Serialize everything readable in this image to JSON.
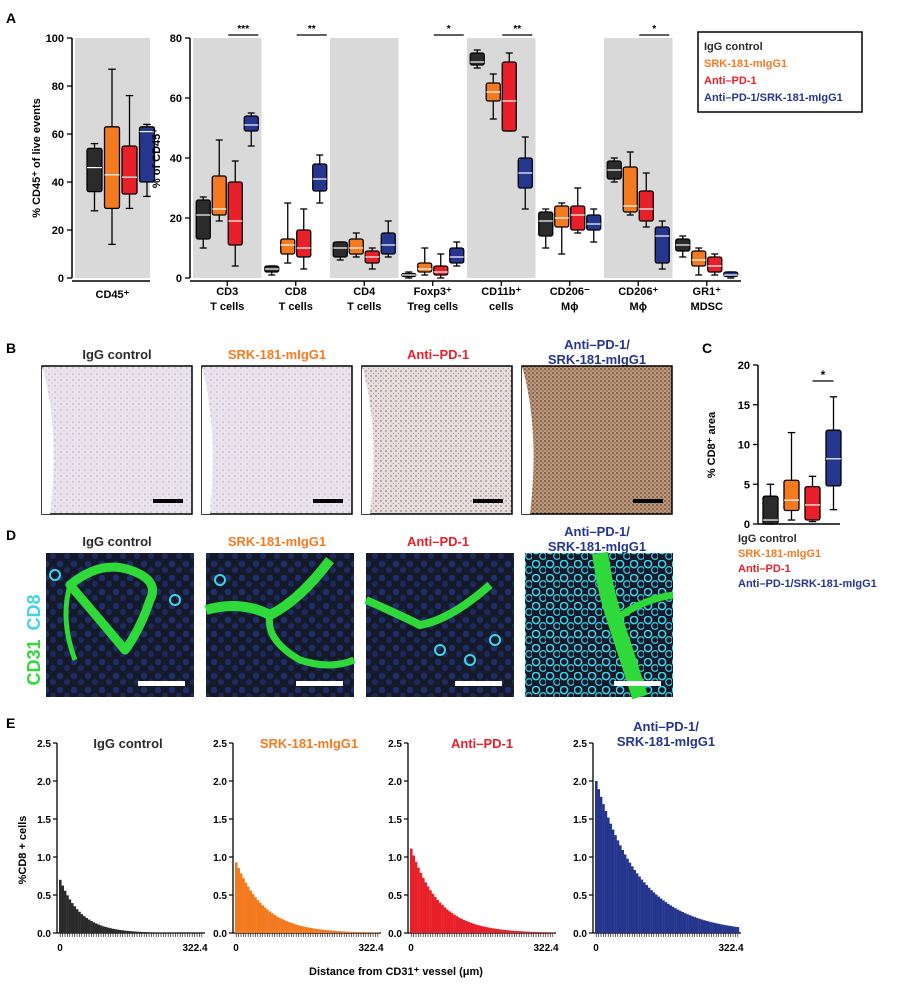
{
  "panel_letters": {
    "a": "A",
    "b": "B",
    "c": "C",
    "d": "D",
    "e": "E"
  },
  "colors": {
    "igg": "#2b2b2b",
    "srk": "#f47a20",
    "pd1": "#e8202a",
    "combo": "#26368f",
    "shade": "#d9d9d9",
    "green": "#2fd93a",
    "cyan": "#43d3e6"
  },
  "legend": {
    "igg": "IgG control",
    "srk": "SRK-181-mIgG1",
    "pd1": "Anti–PD-1",
    "combo": "Anti–PD-1/SRK-181-mIgG1"
  },
  "chart_data": [
    {
      "id": "A_cd45",
      "type": "box",
      "ylabel": "% CD45⁺ of live events",
      "ylim": [
        0,
        100
      ],
      "yticks": [
        "0",
        "20",
        "40",
        "60",
        "80",
        "100"
      ],
      "categories": [
        "CD45⁺"
      ],
      "groups": [
        [
          {
            "min": 28,
            "q1": 36,
            "med": 46,
            "q3": 54,
            "max": 56
          },
          {
            "min": 14,
            "q1": 29,
            "med": 43,
            "q3": 63,
            "max": 87
          },
          {
            "min": 29,
            "q1": 35,
            "med": 42,
            "q3": 55,
            "max": 76
          },
          {
            "min": 34,
            "q1": 40,
            "med": 61,
            "q3": 63,
            "max": 64
          }
        ]
      ]
    },
    {
      "id": "A_cd45pct",
      "type": "box",
      "ylabel": "% of CD45⁺",
      "ylim": [
        0,
        80
      ],
      "yticks": [
        "0",
        "20",
        "40",
        "60",
        "80"
      ],
      "categories": [
        "CD3 T cells",
        "CD8 T cells",
        "CD4 T cells",
        "Foxp3⁺ Treg cells",
        "CD11b⁺ cells",
        "CD206⁻ Mϕ",
        "CD206⁺ Mϕ",
        "GR1⁺ MDSC"
      ],
      "category_line1": [
        "CD3",
        "CD8",
        "CD4",
        "Foxp3⁺",
        "CD11b⁺",
        "CD206⁻",
        "CD206⁺",
        "GR1⁺"
      ],
      "category_line2": [
        "T cells",
        "T cells",
        "T cells",
        "Treg cells",
        "cells",
        "Mϕ",
        "Mϕ",
        "MDSC"
      ],
      "significance": [
        {
          "category": 0,
          "label": "***"
        },
        {
          "category": 1,
          "label": "**"
        },
        {
          "category": 3,
          "label": "*"
        },
        {
          "category": 4,
          "label": "**"
        },
        {
          "category": 6,
          "label": "*"
        }
      ],
      "groups": [
        [
          {
            "min": 10,
            "q1": 13,
            "med": 21,
            "q3": 26,
            "max": 27
          },
          {
            "min": 19,
            "q1": 21,
            "med": 23,
            "q3": 34,
            "max": 46
          },
          {
            "min": 4,
            "q1": 11,
            "med": 19,
            "q3": 32,
            "max": 39
          },
          {
            "min": 44,
            "q1": 49,
            "med": 51,
            "q3": 54,
            "max": 55
          }
        ],
        [
          {
            "min": 1,
            "q1": 2,
            "med": 3,
            "q3": 4,
            "max": 4
          },
          {
            "min": 5,
            "q1": 8,
            "med": 11,
            "q3": 13,
            "max": 25
          },
          {
            "min": 3,
            "q1": 7,
            "med": 10,
            "q3": 16,
            "max": 23
          },
          {
            "min": 25,
            "q1": 29,
            "med": 33,
            "q3": 38,
            "max": 41
          }
        ],
        [
          {
            "min": 6,
            "q1": 7,
            "med": 10,
            "q3": 12,
            "max": 12
          },
          {
            "min": 7,
            "q1": 8,
            "med": 10,
            "q3": 13,
            "max": 15
          },
          {
            "min": 3,
            "q1": 5,
            "med": 7,
            "q3": 9,
            "max": 10
          },
          {
            "min": 7,
            "q1": 8,
            "med": 11,
            "q3": 15,
            "max": 19
          }
        ],
        [
          {
            "min": 0,
            "q1": 0.5,
            "med": 1,
            "q3": 1.5,
            "max": 2
          },
          {
            "min": 1,
            "q1": 2,
            "med": 3,
            "q3": 5,
            "max": 10
          },
          {
            "min": 0,
            "q1": 1,
            "med": 2,
            "q3": 4,
            "max": 8
          },
          {
            "min": 4,
            "q1": 5,
            "med": 7,
            "q3": 10,
            "max": 12
          }
        ],
        [
          {
            "min": 70,
            "q1": 71,
            "med": 72,
            "q3": 75,
            "max": 76
          },
          {
            "min": 53,
            "q1": 59,
            "med": 62,
            "q3": 65,
            "max": 68
          },
          {
            "min": 49,
            "q1": 49,
            "med": 59,
            "q3": 72,
            "max": 75
          },
          {
            "min": 23,
            "q1": 30,
            "med": 35,
            "q3": 40,
            "max": 47
          }
        ],
        [
          {
            "min": 10,
            "q1": 14,
            "med": 19,
            "q3": 22,
            "max": 23
          },
          {
            "min": 8,
            "q1": 17,
            "med": 20,
            "q3": 24,
            "max": 25
          },
          {
            "min": 15,
            "q1": 16,
            "med": 21,
            "q3": 24,
            "max": 30
          },
          {
            "min": 12,
            "q1": 16,
            "med": 18,
            "q3": 21,
            "max": 23
          }
        ],
        [
          {
            "min": 32,
            "q1": 33,
            "med": 36,
            "q3": 39,
            "max": 40
          },
          {
            "min": 21,
            "q1": 22,
            "med": 24,
            "q3": 37,
            "max": 42
          },
          {
            "min": 17,
            "q1": 19,
            "med": 23,
            "q3": 29,
            "max": 35
          },
          {
            "min": 3,
            "q1": 5,
            "med": 14,
            "q3": 17,
            "max": 19
          }
        ],
        [
          {
            "min": 7,
            "q1": 9,
            "med": 11,
            "q3": 13,
            "max": 14
          },
          {
            "min": 1,
            "q1": 4,
            "med": 6,
            "q3": 9,
            "max": 10
          },
          {
            "min": 1,
            "q1": 2,
            "med": 4,
            "q3": 7,
            "max": 8
          },
          {
            "min": 0,
            "q1": 0.5,
            "med": 1,
            "q3": 2,
            "max": 2
          }
        ]
      ]
    },
    {
      "id": "C",
      "type": "box",
      "ylabel": "% CD8⁺ area",
      "ylim": [
        0,
        20
      ],
      "yticks": [
        "0",
        "5",
        "10",
        "15",
        "20"
      ],
      "significance": [
        {
          "from": 2,
          "to": 3,
          "label": "*"
        }
      ],
      "groups": [
        [
          {
            "min": 0,
            "q1": 0,
            "med": 0.5,
            "q3": 3.5,
            "max": 5
          },
          {
            "min": 0.5,
            "q1": 1.7,
            "med": 3,
            "q3": 5.5,
            "max": 11.5
          },
          {
            "min": 0.3,
            "q1": 0.5,
            "med": 2.4,
            "q3": 4.7,
            "max": 6
          },
          {
            "min": 1.8,
            "q1": 4.8,
            "med": 8.2,
            "q3": 11.8,
            "max": 16
          }
        ]
      ]
    },
    {
      "id": "E",
      "type": "bar",
      "ylabel": "%CD8 + cells",
      "xlabel": "Distance from CD31⁺ vessel (μm)",
      "yticks": [
        "0.0",
        "0.5",
        "1.0",
        "1.5",
        "2.0",
        "2.5"
      ],
      "ylim": [
        0,
        2.5
      ],
      "xlim": [
        0,
        322.4
      ],
      "xticks": [
        "0",
        "322.4"
      ],
      "series": [
        {
          "name": "IgG control",
          "peak": 0.7,
          "decay": 0.115
        },
        {
          "name": "SRK-181-mIgG1",
          "peak": 0.93,
          "decay": 0.085
        },
        {
          "name": "Anti–PD-1",
          "peak": 1.11,
          "decay": 0.085
        },
        {
          "name": "Anti–PD-1/SRK-181-mIgG1",
          "peak": 2.0,
          "decay": 0.055
        }
      ]
    }
  ],
  "b_titles": [
    "IgG control",
    "SRK-181-mIgG1",
    "Anti–PD-1",
    "Anti–PD-1/",
    "SRK-181-mIgG1"
  ],
  "d_titles": [
    "IgG control",
    "SRK-181-mIgG1",
    "Anti–PD-1",
    "Anti–PD-1/",
    "SRK-181-mIgG1"
  ],
  "d_side_label": {
    "cd31": "CD31",
    "cd8": "CD8"
  },
  "e_titles": [
    "IgG control",
    "SRK-181-mIgG1",
    "Anti–PD-1",
    "Anti–PD-1/",
    "SRK-181-mIgG1"
  ]
}
